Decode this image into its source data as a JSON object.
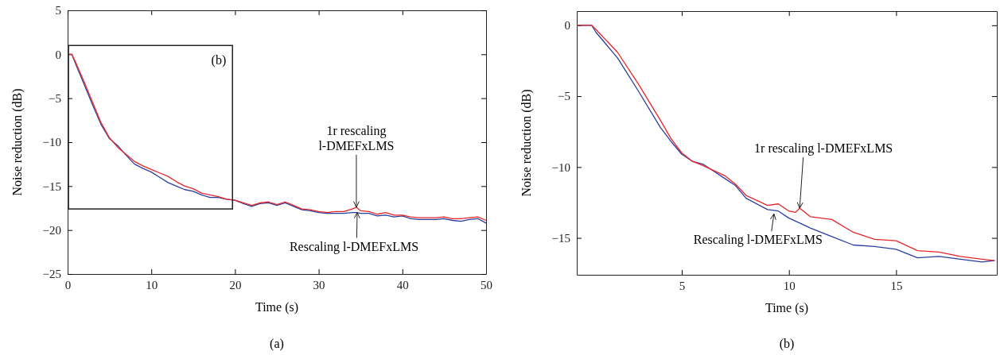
{
  "chart_data": [
    {
      "type": "line",
      "xlabel": "Time (s)",
      "ylabel": "Noise reduction (dB)",
      "xlim": [
        0,
        50
      ],
      "ylim": [
        -25,
        5
      ],
      "xticks": [
        0,
        10,
        20,
        30,
        40,
        50
      ],
      "yticks": [
        -25,
        -20,
        -15,
        -10,
        -5,
        0,
        5
      ],
      "grid": false,
      "series": [
        {
          "color": "#2b3ea0",
          "x": [
            0,
            0.5,
            1,
            2,
            3,
            4,
            5,
            6,
            7,
            8,
            9,
            10,
            11,
            12,
            13,
            14,
            15,
            16,
            17,
            18,
            19,
            20,
            21,
            22,
            23,
            24,
            25,
            26,
            27,
            28,
            29,
            30,
            31,
            32,
            33,
            34,
            34.5,
            35,
            36,
            37,
            38,
            39,
            40,
            41,
            42,
            43,
            44,
            45,
            46,
            47,
            48,
            49,
            50
          ],
          "values": [
            0,
            0,
            -1.2,
            -3.5,
            -5.8,
            -8.0,
            -9.6,
            -10.4,
            -11.5,
            -12.5,
            -13.0,
            -13.4,
            -14.0,
            -14.6,
            -15.0,
            -15.4,
            -15.6,
            -16.0,
            -16.3,
            -16.3,
            -16.5,
            -16.6,
            -17.0,
            -17.3,
            -17.0,
            -16.9,
            -17.2,
            -16.9,
            -17.3,
            -17.7,
            -17.8,
            -18.0,
            -18.1,
            -18.1,
            -18.1,
            -18.0,
            -18.0,
            -18.1,
            -18.1,
            -18.4,
            -18.3,
            -18.5,
            -18.4,
            -18.7,
            -18.8,
            -18.8,
            -18.8,
            -18.7,
            -18.9,
            -19.0,
            -18.8,
            -18.7,
            -19.2
          ]
        },
        {
          "color": "#e8262a",
          "x": [
            0,
            0.5,
            1,
            2,
            3,
            4,
            5,
            6,
            7,
            8,
            9,
            10,
            11,
            12,
            13,
            14,
            15,
            16,
            17,
            18,
            19,
            20,
            21,
            22,
            23,
            24,
            25,
            26,
            27,
            28,
            29,
            30,
            31,
            32,
            33,
            34,
            34.5,
            35,
            36,
            37,
            38,
            39,
            40,
            41,
            42,
            43,
            44,
            45,
            46,
            47,
            48,
            49,
            50
          ],
          "values": [
            0,
            0,
            -1,
            -3.2,
            -5.5,
            -7.8,
            -9.5,
            -10.6,
            -11.4,
            -12.2,
            -12.7,
            -13.1,
            -13.5,
            -13.9,
            -14.5,
            -15.0,
            -15.3,
            -15.8,
            -16.0,
            -16.2,
            -16.5,
            -16.6,
            -16.9,
            -17.2,
            -16.9,
            -16.8,
            -17.1,
            -16.8,
            -17.2,
            -17.6,
            -17.7,
            -17.9,
            -18.0,
            -17.9,
            -17.9,
            -17.6,
            -17.4,
            -17.8,
            -17.9,
            -18.2,
            -18.0,
            -18.3,
            -18.3,
            -18.5,
            -18.6,
            -18.6,
            -18.6,
            -18.5,
            -18.7,
            -18.7,
            -18.6,
            -18.5,
            -18.9
          ]
        }
      ],
      "annotations": [
        {
          "text": "1r rescaling\nl-DMEFxLMS",
          "x": 34.5,
          "y": -17.4
        },
        {
          "text": "Rescaling l-DMEFxLMS",
          "x": 34.6,
          "y": -18.0
        },
        "(b)",
        "(a)"
      ]
    },
    {
      "type": "line",
      "xlabel": "Time (s)",
      "ylabel": "Noise reduction (dB)",
      "xlim": [
        0.1,
        19.7
      ],
      "ylim": [
        -17.6,
        1
      ],
      "xticks": [
        5,
        10,
        15
      ],
      "yticks": [
        -15,
        -10,
        -5,
        0
      ],
      "grid": false,
      "series": [
        {
          "color": "#2b3ea0",
          "x": [
            0.1,
            0.8,
            1,
            2,
            3,
            4,
            4.5,
            5,
            5.5,
            6,
            6.5,
            7,
            7.5,
            8,
            9,
            9.5,
            10,
            11,
            12,
            13,
            14,
            15,
            16,
            17,
            18,
            19,
            19.6
          ],
          "values": [
            0,
            0,
            -0.5,
            -2.3,
            -4.7,
            -7.2,
            -8.2,
            -9.1,
            -9.6,
            -9.8,
            -10.3,
            -10.8,
            -11.3,
            -12.2,
            -13.0,
            -13.1,
            -13.6,
            -14.3,
            -14.9,
            -15.5,
            -15.6,
            -15.8,
            -16.4,
            -16.3,
            -16.5,
            -16.7,
            -16.6
          ]
        },
        {
          "color": "#e8262a",
          "x": [
            0.1,
            0.8,
            1,
            2,
            3,
            4,
            4.5,
            5,
            5.5,
            6,
            7,
            7.5,
            8,
            9,
            9.5,
            10,
            10.3,
            10.5,
            11,
            12,
            13,
            14,
            15,
            16,
            17,
            18,
            19,
            19.6
          ],
          "values": [
            0,
            0,
            -0.3,
            -1.9,
            -4.2,
            -6.7,
            -8.0,
            -9.0,
            -9.6,
            -9.9,
            -10.6,
            -11.2,
            -12.0,
            -12.7,
            -12.6,
            -13.1,
            -13.2,
            -12.9,
            -13.5,
            -13.7,
            -14.6,
            -15.1,
            -15.2,
            -15.9,
            -16.0,
            -16.3,
            -16.5,
            -16.6
          ]
        }
      ],
      "annotations": [
        {
          "text": "1r rescaling l-DMEFxLMS",
          "x": 10.5,
          "y": -12.9
        },
        {
          "text": "Rescaling l-DMEFxLMS",
          "x": 9.3,
          "y": -13.3
        },
        "(b)"
      ]
    }
  ]
}
